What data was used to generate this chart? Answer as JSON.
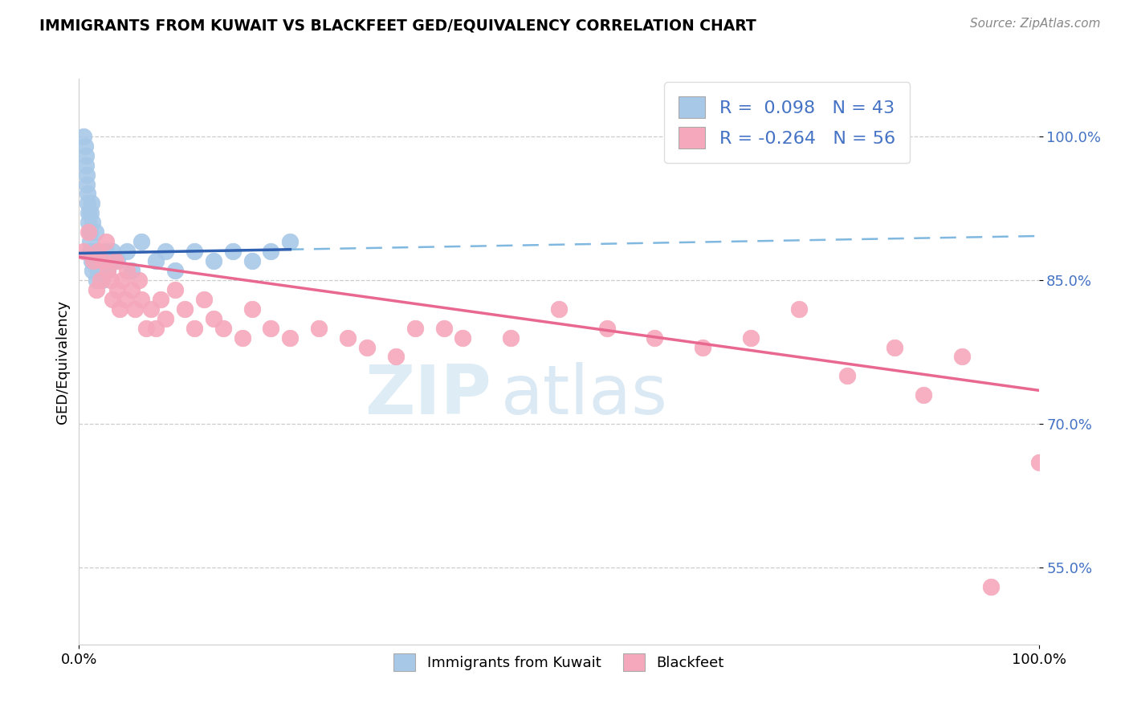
{
  "title": "IMMIGRANTS FROM KUWAIT VS BLACKFEET GED/EQUIVALENCY CORRELATION CHART",
  "source": "Source: ZipAtlas.com",
  "ylabel": "GED/Equivalency",
  "xlim": [
    0.0,
    1.0
  ],
  "ylim": [
    0.47,
    1.06
  ],
  "kuwait_R": 0.098,
  "kuwait_N": 43,
  "blackfeet_R": -0.264,
  "blackfeet_N": 56,
  "kuwait_color": "#a8c8e8",
  "blackfeet_color": "#f5a8bc",
  "kuwait_line_color": "#3060b0",
  "blackfeet_line_color": "#e86890",
  "dashed_line_color": "#80b8e0",
  "watermark_zip": "ZIP",
  "watermark_atlas": "atlas",
  "ytick_positions": [
    0.55,
    0.7,
    0.85,
    1.0
  ],
  "ytick_labels": [
    "55.0%",
    "70.0%",
    "85.0%",
    "100.0%"
  ],
  "kuwait_points_x": [
    0.005,
    0.006,
    0.007,
    0.007,
    0.008,
    0.008,
    0.009,
    0.009,
    0.01,
    0.01,
    0.011,
    0.011,
    0.011,
    0.012,
    0.012,
    0.013,
    0.013,
    0.014,
    0.014,
    0.015,
    0.016,
    0.017,
    0.018,
    0.019,
    0.02,
    0.022,
    0.024,
    0.028,
    0.03,
    0.035,
    0.04,
    0.05,
    0.055,
    0.065,
    0.08,
    0.09,
    0.1,
    0.12,
    0.14,
    0.16,
    0.18,
    0.2,
    0.22
  ],
  "kuwait_points_y": [
    1.0,
    0.99,
    0.98,
    0.97,
    0.96,
    0.95,
    0.94,
    0.93,
    0.92,
    0.91,
    0.9,
    0.89,
    0.88,
    0.92,
    0.88,
    0.93,
    0.87,
    0.91,
    0.86,
    0.88,
    0.87,
    0.9,
    0.85,
    0.88,
    0.86,
    0.87,
    0.85,
    0.88,
    0.86,
    0.88,
    0.87,
    0.88,
    0.86,
    0.89,
    0.87,
    0.88,
    0.86,
    0.88,
    0.87,
    0.88,
    0.87,
    0.88,
    0.89
  ],
  "blackfeet_points_x": [
    0.005,
    0.01,
    0.015,
    0.018,
    0.02,
    0.022,
    0.025,
    0.028,
    0.03,
    0.033,
    0.035,
    0.038,
    0.04,
    0.042,
    0.045,
    0.048,
    0.05,
    0.055,
    0.058,
    0.062,
    0.065,
    0.07,
    0.075,
    0.08,
    0.085,
    0.09,
    0.1,
    0.11,
    0.12,
    0.13,
    0.14,
    0.15,
    0.17,
    0.18,
    0.2,
    0.22,
    0.25,
    0.28,
    0.3,
    0.33,
    0.35,
    0.38,
    0.4,
    0.45,
    0.5,
    0.55,
    0.6,
    0.65,
    0.7,
    0.75,
    0.8,
    0.85,
    0.88,
    0.92,
    0.95,
    1.0
  ],
  "blackfeet_points_y": [
    0.88,
    0.9,
    0.87,
    0.84,
    0.88,
    0.85,
    0.87,
    0.89,
    0.86,
    0.85,
    0.83,
    0.87,
    0.84,
    0.82,
    0.85,
    0.83,
    0.86,
    0.84,
    0.82,
    0.85,
    0.83,
    0.8,
    0.82,
    0.8,
    0.83,
    0.81,
    0.84,
    0.82,
    0.8,
    0.83,
    0.81,
    0.8,
    0.79,
    0.82,
    0.8,
    0.79,
    0.8,
    0.79,
    0.78,
    0.77,
    0.8,
    0.8,
    0.79,
    0.79,
    0.82,
    0.8,
    0.79,
    0.78,
    0.79,
    0.82,
    0.75,
    0.78,
    0.73,
    0.77,
    0.53,
    0.66
  ],
  "kuwait_trendline": [
    0.878,
    0.896
  ],
  "blackfeet_trendline": [
    0.874,
    0.735
  ]
}
